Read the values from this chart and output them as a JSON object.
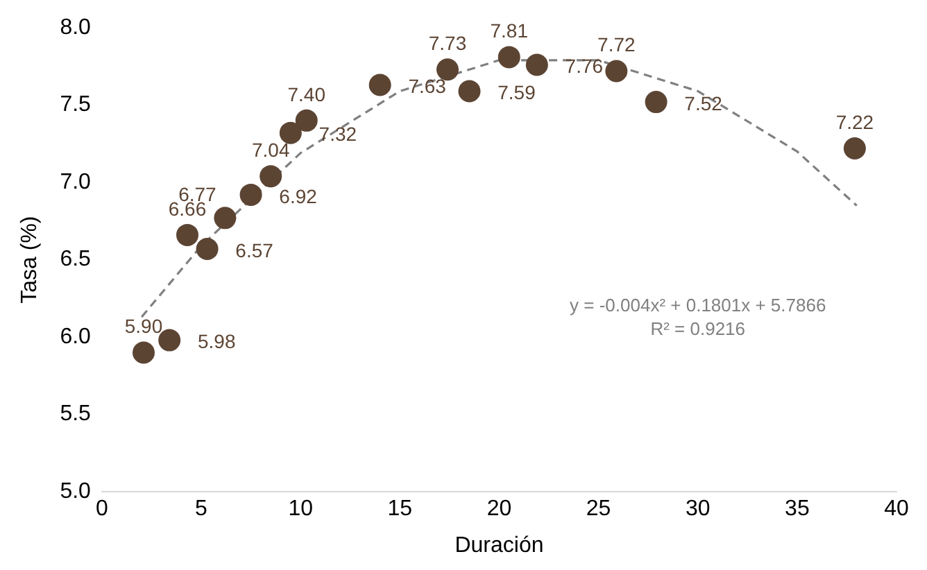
{
  "chart_data": {
    "type": "scatter",
    "xlabel": "Duración",
    "ylabel": "Tasa (%)",
    "xlim": [
      0,
      40
    ],
    "xticks": [
      0,
      5,
      10,
      15,
      20,
      25,
      30,
      35,
      40
    ],
    "ylim": [
      5,
      8
    ],
    "yticks": [
      {
        "value": 5,
        "label": "5.0"
      },
      {
        "value": 5.5,
        "label": "5.5"
      },
      {
        "value": 6,
        "label": "6.0"
      },
      {
        "value": 6.5,
        "label": "6.5"
      },
      {
        "value": 7,
        "label": "7.0"
      },
      {
        "value": 7.5,
        "label": "7.5"
      },
      {
        "value": 8,
        "label": "8.0"
      }
    ],
    "grid": false,
    "legend": false,
    "marker": "circle",
    "series": [
      {
        "color": "#5c4433",
        "x": [
          2.1,
          3.4,
          4.3,
          5.3,
          6.2,
          7.5,
          8.5,
          9.5,
          10.3,
          14.0,
          17.4,
          18.5,
          20.5,
          21.9,
          25.9,
          27.9,
          37.9
        ],
        "values": [
          5.9,
          5.98,
          6.66,
          6.57,
          6.77,
          6.92,
          7.04,
          7.32,
          7.4,
          7.63,
          7.73,
          7.59,
          7.81,
          7.76,
          7.72,
          7.52,
          7.22
        ],
        "value_labels": [
          "5.90",
          "5.98",
          "6.66",
          "6.57",
          "6.77",
          "6.92",
          "7.04",
          "7.32",
          "7.40",
          "7.63",
          "7.73",
          "7.59",
          "7.81",
          "7.76",
          "7.72",
          "7.52",
          "7.22"
        ]
      },
      {
        "type": "line",
        "color": "#808080",
        "line_style": "dashed",
        "marker": "none",
        "x": [
          2,
          5,
          10,
          15,
          20,
          25,
          30,
          35,
          38
        ],
        "values": [
          6.13,
          6.59,
          7.19,
          7.59,
          7.79,
          7.79,
          7.59,
          7.2,
          6.85
        ]
      }
    ],
    "annotations": [
      "y = -0.004x² + 0.1801x + 5.7866",
      "R² = 0.9216"
    ]
  }
}
